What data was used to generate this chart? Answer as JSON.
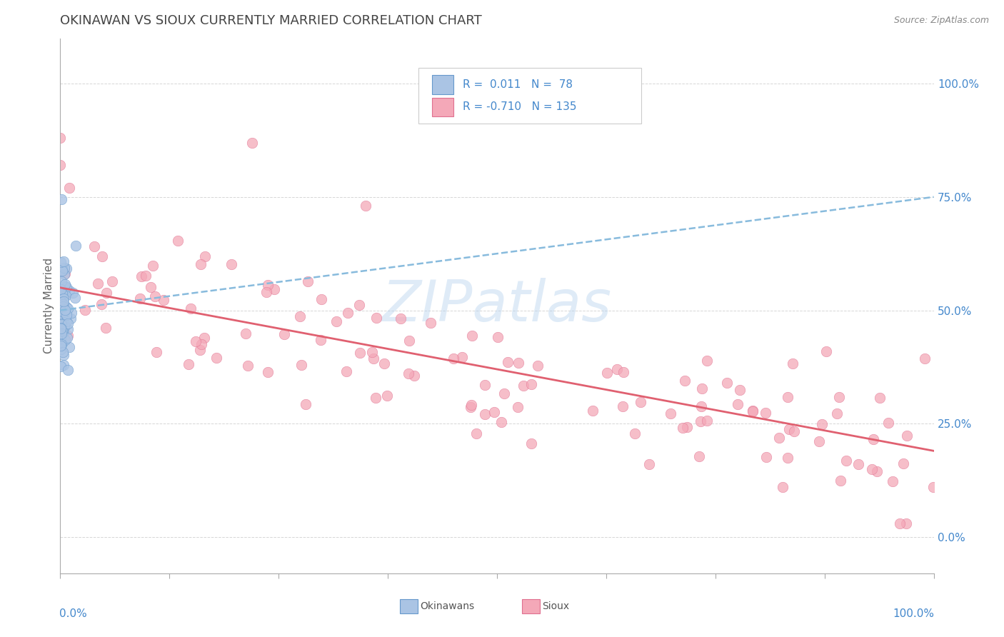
{
  "title": "OKINAWAN VS SIOUX CURRENTLY MARRIED CORRELATION CHART",
  "source": "Source: ZipAtlas.com",
  "ylabel": "Currently Married",
  "watermark_text": "ZIPatlas",
  "legend_line1": "R =  0.011   N =  78",
  "legend_line2": "R = -0.710   N = 135",
  "okinawan_color": "#aac4e4",
  "okinawan_edge": "#6699cc",
  "sioux_color": "#f4a8b8",
  "sioux_edge": "#e07090",
  "trend_okinawan_color": "#88bbdd",
  "trend_sioux_color": "#e06070",
  "background": "#ffffff",
  "grid_color": "#cccccc",
  "label_color": "#4488cc",
  "title_color": "#444444",
  "title_fontsize": 13,
  "xlim": [
    0.0,
    1.0
  ],
  "ylim": [
    -0.08,
    1.1
  ],
  "ytick_positions": [
    0.0,
    0.25,
    0.5,
    0.75,
    1.0
  ],
  "ytick_labels": [
    "0.0%",
    "25.0%",
    "50.0%",
    "75.0%",
    "100.0%"
  ],
  "trend_ok_x0": 0.0,
  "trend_ok_y0": 0.5,
  "trend_ok_x1": 1.0,
  "trend_ok_y1": 0.75,
  "trend_si_x0": 0.0,
  "trend_si_y0": 0.55,
  "trend_si_x1": 1.0,
  "trend_si_y1": 0.19
}
